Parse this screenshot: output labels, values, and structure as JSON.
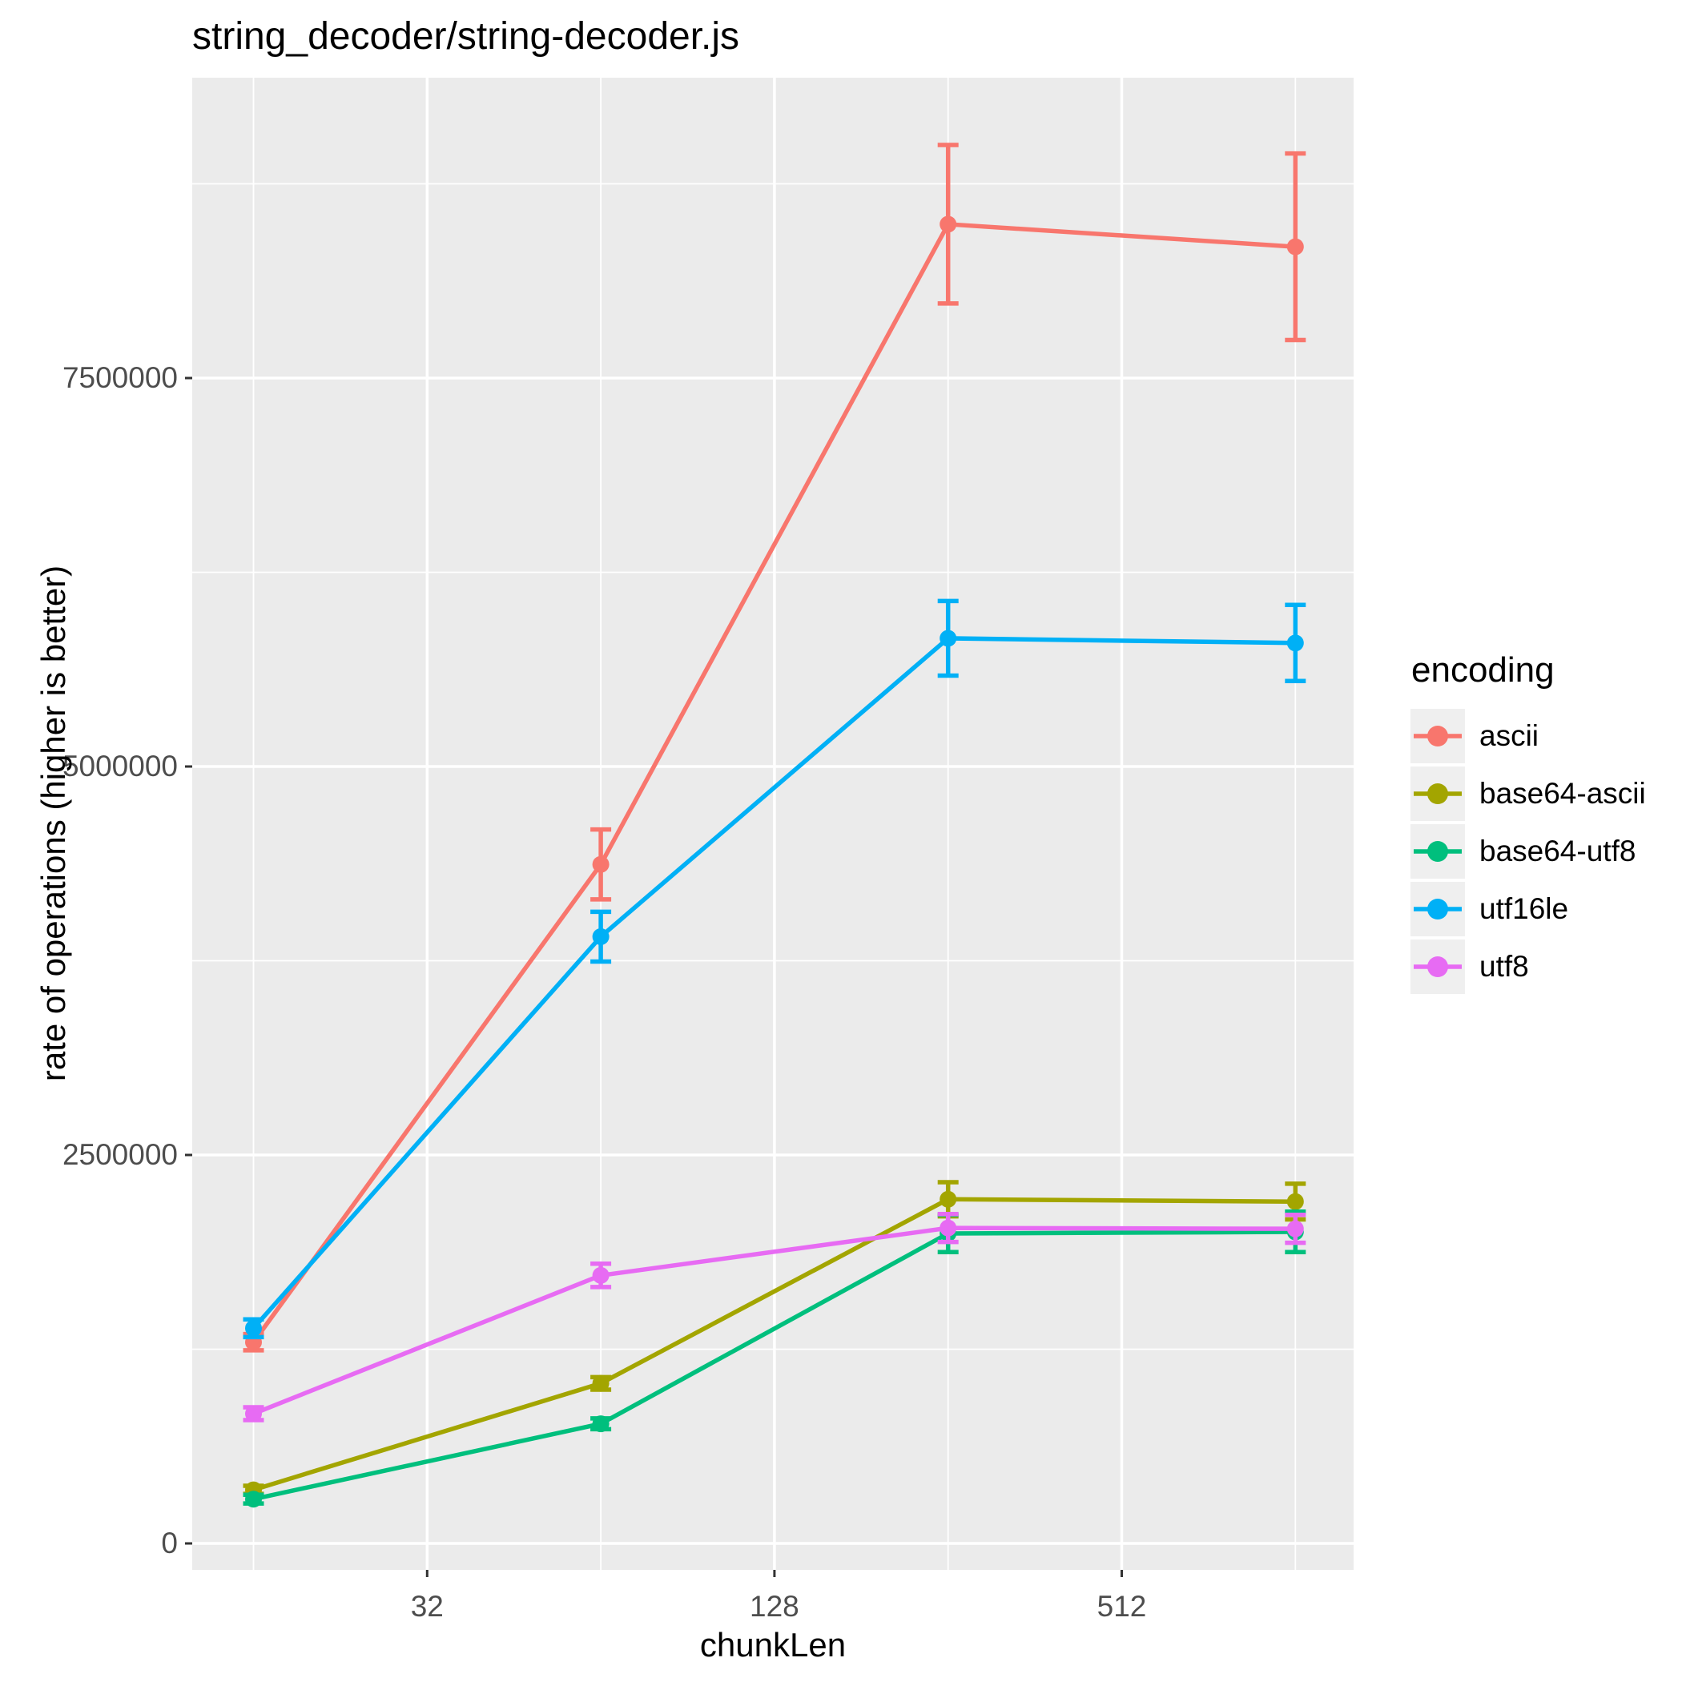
{
  "chart_data": {
    "type": "line",
    "title": "string_decoder/string-decoder.js",
    "xlabel": "chunkLen",
    "ylabel": "rate of operations (higher is better)",
    "legend_title": "encoding",
    "legend_position": "right",
    "x_scale": "log2",
    "grid": true,
    "x": [
      16,
      64,
      256,
      1024
    ],
    "x_ticks": [
      32,
      128,
      512
    ],
    "y_ticks": [
      0,
      2500000,
      5000000,
      7500000
    ],
    "ylim": [
      -170000,
      9430000
    ],
    "series": [
      {
        "name": "ascii",
        "color": "#F8766D",
        "values": [
          1295000,
          4370000,
          8490000,
          8345000
        ],
        "errors": [
          52000,
          225000,
          510000,
          600000
        ]
      },
      {
        "name": "base64-ascii",
        "color": "#A3A500",
        "values": [
          345000,
          1030000,
          2215000,
          2200000
        ],
        "errors": [
          26000,
          40000,
          110000,
          115000
        ]
      },
      {
        "name": "base64-utf8",
        "color": "#00BF7D",
        "values": [
          285000,
          770000,
          1995000,
          2005000
        ],
        "errors": [
          28000,
          35000,
          120000,
          130000
        ]
      },
      {
        "name": "utf16le",
        "color": "#00B0F6",
        "values": [
          1385000,
          3905000,
          5825000,
          5795000
        ],
        "errors": [
          57000,
          160000,
          240000,
          245000
        ]
      },
      {
        "name": "utf8",
        "color": "#E76BF3",
        "values": [
          835000,
          1725000,
          2030000,
          2025000
        ],
        "errors": [
          41000,
          75000,
          90000,
          90000
        ]
      }
    ],
    "colors": {
      "panel_background": "#EBEBEB",
      "grid_line": "#FFFFFF",
      "tick_mark": "#333333",
      "tick_label": "#4D4D4D",
      "text": "#000000",
      "legend_key_background": "#EFEFEF"
    }
  }
}
